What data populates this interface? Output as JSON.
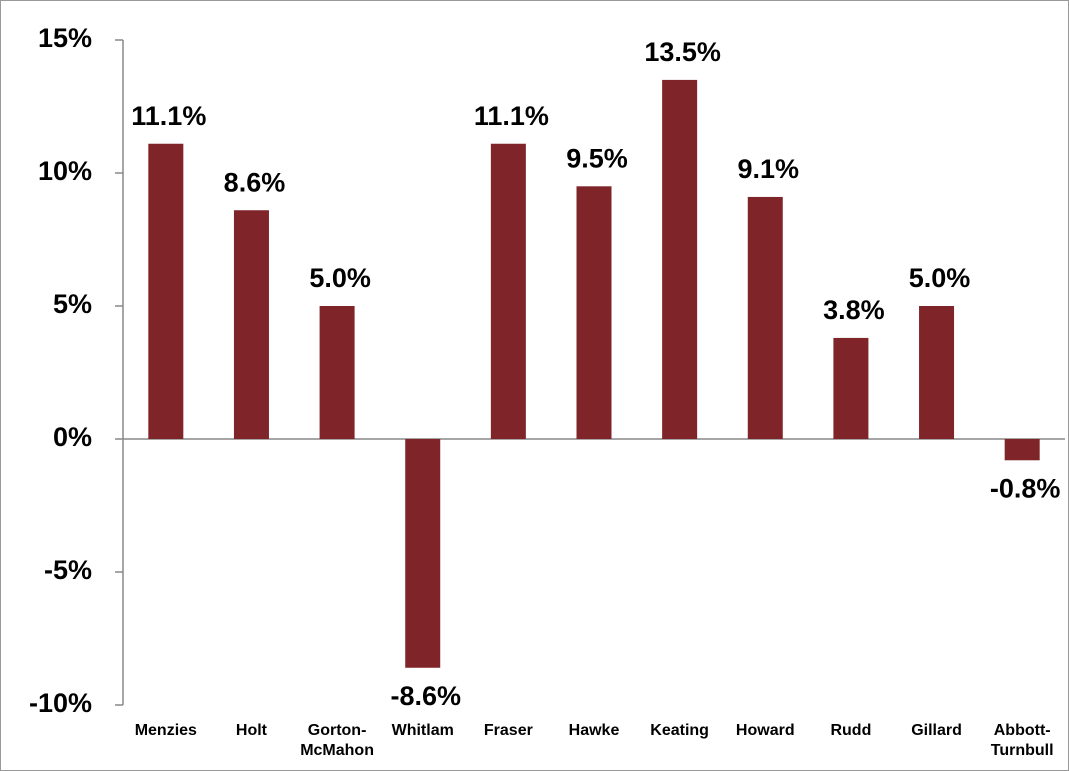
{
  "chart_data": {
    "type": "bar",
    "categories": [
      "Menzies",
      "Holt",
      "Gorton-McMahon",
      "Whitlam",
      "Fraser",
      "Hawke",
      "Keating",
      "Howard",
      "Rudd",
      "Gillard",
      "Abbott-Turnbull"
    ],
    "values": [
      11.1,
      8.6,
      5.0,
      -8.6,
      11.1,
      9.5,
      13.5,
      9.1,
      3.8,
      5.0,
      -0.8
    ],
    "value_labels": [
      "11.1%",
      "8.6%",
      "5.0%",
      "-8.6%",
      "11.1%",
      "9.5%",
      "13.5%",
      "9.1%",
      "3.8%",
      "5.0%",
      "-0.8%"
    ],
    "color": "#7f2428",
    "ylim": [
      -10,
      15
    ],
    "yticks": [
      {
        "value": -10,
        "label": "-10%"
      },
      {
        "value": -5,
        "label": "-5%"
      },
      {
        "value": 0,
        "label": "0%"
      },
      {
        "value": 5,
        "label": "5%"
      },
      {
        "value": 10,
        "label": "10%"
      },
      {
        "value": 15,
        "label": "15%"
      }
    ],
    "grid": false
  }
}
